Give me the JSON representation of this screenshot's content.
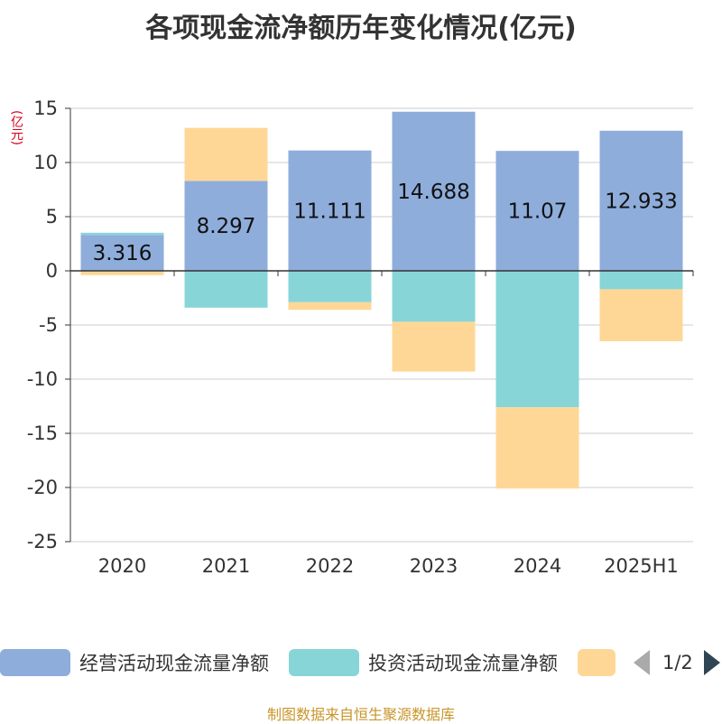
{
  "title": "各项现金流净额历年变化情况(亿元)",
  "unit_label": "(亿元)",
  "source": "制图数据来自恒生聚源数据库",
  "pager": "1/2",
  "colors": {
    "operating": "#8eaddb",
    "investing": "#88d5d8",
    "financing": "#fed797",
    "grid": "#cccccc",
    "axis": "#333333"
  },
  "chart_data": {
    "type": "bar",
    "stacked": true,
    "categories": [
      "2020",
      "2021",
      "2022",
      "2023",
      "2024",
      "2025H1"
    ],
    "ylim": [
      -25,
      15
    ],
    "yticks": [
      15,
      10,
      5,
      0,
      -5,
      -10,
      -15,
      -20,
      -25
    ],
    "series": [
      {
        "name": "经营活动现金流量净额",
        "color": "#8eaddb",
        "values": [
          3.316,
          8.297,
          11.111,
          14.688,
          11.07,
          12.933
        ],
        "labels": [
          "3.316",
          "8.297",
          "11.111",
          "14.688",
          "11.07",
          "12.933"
        ]
      },
      {
        "name": "投资活动现金流量净额",
        "color": "#88d5d8",
        "values": [
          0.2,
          -3.4,
          -2.9,
          -4.7,
          -12.6,
          -1.7
        ]
      },
      {
        "name": "",
        "color": "#fed797",
        "values": [
          -0.4,
          4.9,
          -0.7,
          -4.6,
          -7.5,
          -4.8
        ]
      }
    ]
  }
}
